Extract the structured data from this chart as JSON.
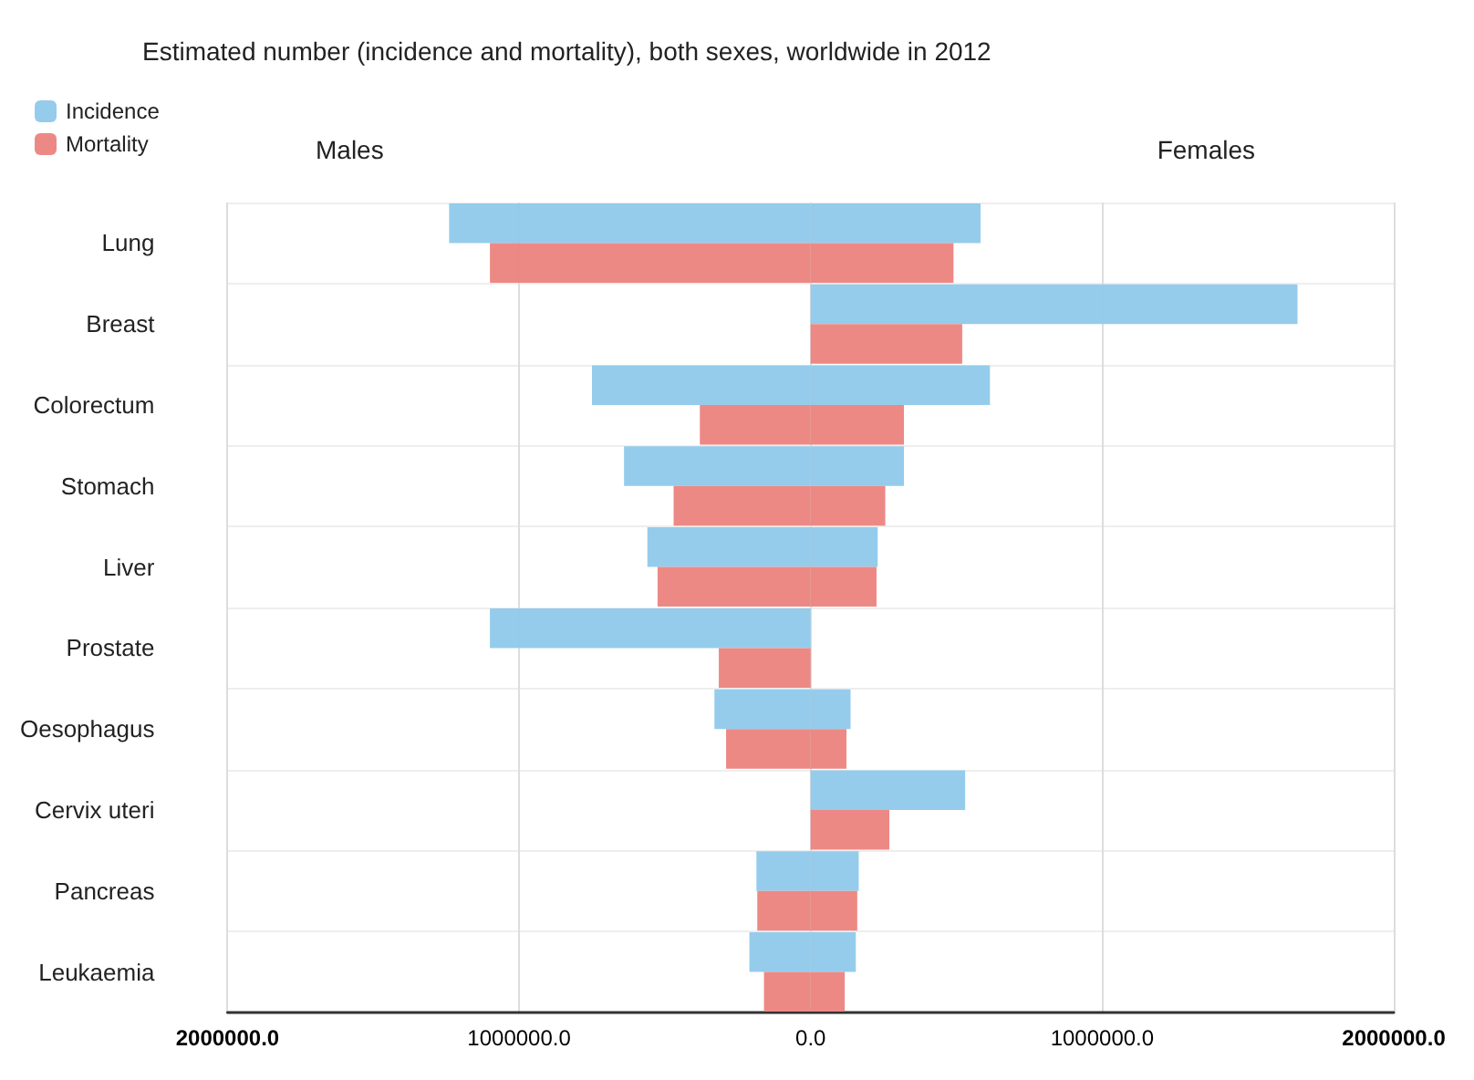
{
  "chart_data": {
    "type": "bar",
    "orientation": "horizontal",
    "title": "Estimated number (incidence and mortality), both sexes, worldwide in 2012",
    "annotations": [
      "Males",
      "Females"
    ],
    "categories": [
      "Lung",
      "Breast",
      "Colorectum",
      "Stomach",
      "Liver",
      "Prostate",
      "Oesophagus",
      "Cervix uteri",
      "Pancreas",
      "Leukaemia"
    ],
    "series": [
      {
        "name": "Incidence",
        "color": "#8fc9ea",
        "values": [
          -1240000,
          0,
          -750000,
          -640000,
          -560000,
          -1100000,
          -330000,
          0,
          -186000,
          -210000
        ]
      },
      {
        "color": "#8fc9ea",
        "values": [
          583000,
          1670000,
          615000,
          320000,
          230000,
          0,
          137000,
          530000,
          165000,
          155000
        ]
      },
      {
        "name": "Mortality",
        "color": "#ec837e",
        "values": [
          -1100000,
          0,
          -380000,
          -470000,
          -525000,
          -315000,
          -290000,
          0,
          -183000,
          -160000
        ]
      },
      {
        "color": "#ec837e",
        "values": [
          490000,
          520000,
          320000,
          256000,
          226000,
          0,
          123000,
          270000,
          160000,
          117000
        ]
      }
    ],
    "xlim": [
      -2000000,
      2000000
    ],
    "xticks": [
      {
        "value": -2000000,
        "label": "2000000.0"
      },
      {
        "value": -1000000,
        "label": "1000000.0"
      },
      {
        "value": 0,
        "label": "0.0"
      },
      {
        "value": 1000000,
        "label": "1000000.0"
      },
      {
        "value": 2000000,
        "label": "2000000.0"
      }
    ],
    "grid": true,
    "legend": "top left"
  }
}
